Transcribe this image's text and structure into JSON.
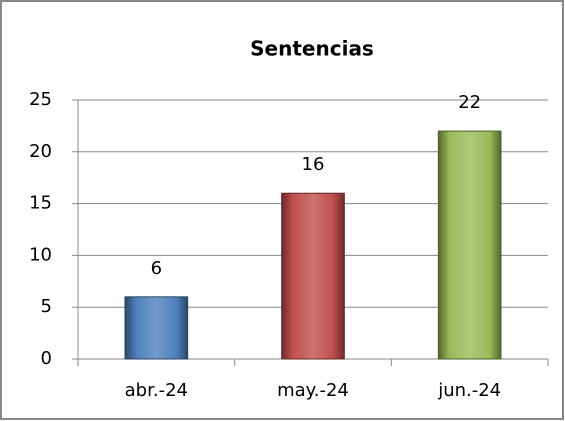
{
  "chart_data": {
    "type": "bar",
    "title": "Sentencias",
    "categories": [
      "abr.-24",
      "may.-24",
      "jun.-24"
    ],
    "values": [
      6,
      16,
      22
    ],
    "colors": [
      "#4f81bd",
      "#c0504d",
      "#9bbb59"
    ],
    "ylim": [
      0,
      25
    ],
    "yticks": [
      0,
      5,
      10,
      15,
      20,
      25
    ],
    "grid": true
  }
}
